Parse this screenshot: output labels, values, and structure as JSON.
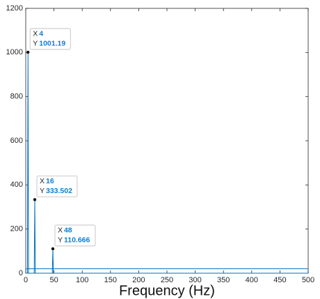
{
  "chart_data": {
    "type": "line",
    "xlabel": "Frequency (Hz)",
    "xlim": [
      0,
      500
    ],
    "xticks": [
      0,
      50,
      100,
      150,
      200,
      250,
      300,
      350,
      400,
      450,
      500
    ],
    "ylim": [
      0,
      1200
    ],
    "yticks": [
      0,
      200,
      400,
      600,
      800,
      1000,
      1200
    ],
    "grid": false,
    "series": [
      {
        "color": "#0072bd",
        "x": [
          0,
          3,
          4,
          5,
          15,
          16,
          17,
          47,
          48,
          49,
          500
        ],
        "values": [
          0,
          0,
          1001.19,
          0,
          0,
          333.502,
          0,
          0,
          110.666,
          0,
          0
        ]
      },
      {
        "color": "#0072bd",
        "x": [
          0,
          500
        ],
        "values": [
          20,
          20
        ]
      }
    ],
    "datatip_labels": [
      "X",
      "Y"
    ],
    "datatips": [
      {
        "x": 4,
        "y": 1001.19
      },
      {
        "x": 16,
        "y": 333.502
      },
      {
        "x": 48,
        "y": 110.666
      }
    ]
  }
}
